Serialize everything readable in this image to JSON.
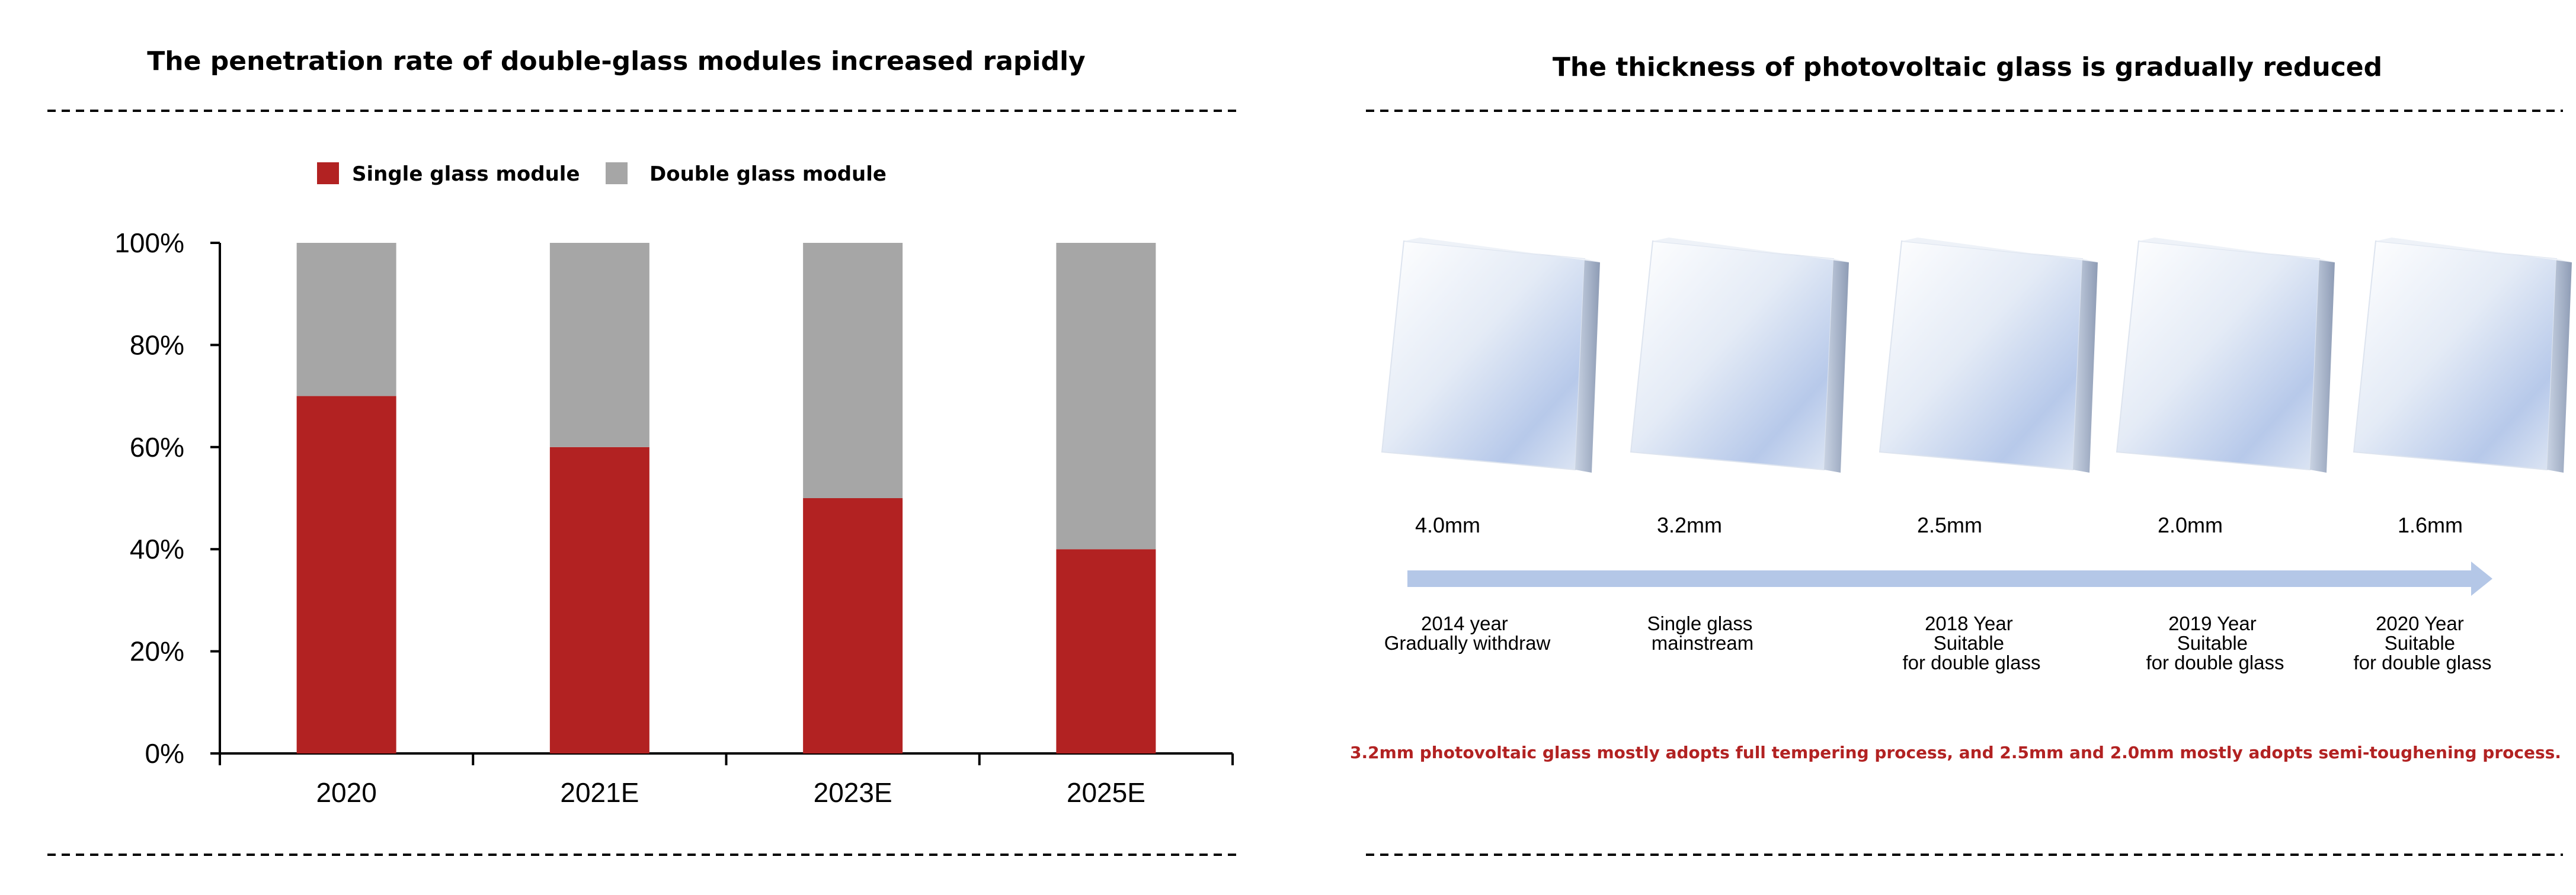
{
  "left_panel": {
    "title": "The penetration rate of double-glass modules increased rapidly"
  },
  "right_panel": {
    "title": "The thickness of photovoltaic glass is gradually reduced",
    "steps": [
      {
        "thickness": "4.0mm",
        "lines": [
          "2014 year",
          "Gradually withdraw"
        ]
      },
      {
        "thickness": "3.2mm",
        "lines": [
          "Single glass",
          "mainstream"
        ]
      },
      {
        "thickness": "2.5mm",
        "lines": [
          "2018 Year",
          "Suitable",
          "for double glass"
        ]
      },
      {
        "thickness": "2.0mm",
        "lines": [
          "2019 Year",
          "Suitable",
          "for double glass"
        ]
      },
      {
        "thickness": "1.6mm",
        "lines": [
          "2020 Year",
          "Suitable",
          "for double glass"
        ]
      }
    ],
    "note": "3.2mm photovoltaic glass mostly adopts full tempering process, and 2.5mm and 2.0mm mostly adopts semi-toughening process.",
    "colors": {
      "note": "#B22222",
      "arrow": "#B4C7E7"
    }
  },
  "chart_data": {
    "type": "bar",
    "stacked": true,
    "categories": [
      "2020",
      "2021E",
      "2023E",
      "2025E"
    ],
    "series": [
      {
        "name": "Single glass module",
        "values": [
          70,
          60,
          50,
          40
        ],
        "color": "#B22222"
      },
      {
        "name": "Double glass module",
        "values": [
          30,
          40,
          50,
          60
        ],
        "color": "#A6A6A6"
      }
    ],
    "ylim": [
      0,
      100
    ],
    "yticks": [
      0,
      20,
      40,
      60,
      80,
      100
    ],
    "ytick_labels": [
      "0%",
      "20%",
      "40%",
      "60%",
      "80%",
      "100%"
    ],
    "legend_position": "top",
    "grid": false,
    "xlabel": "",
    "ylabel": ""
  }
}
